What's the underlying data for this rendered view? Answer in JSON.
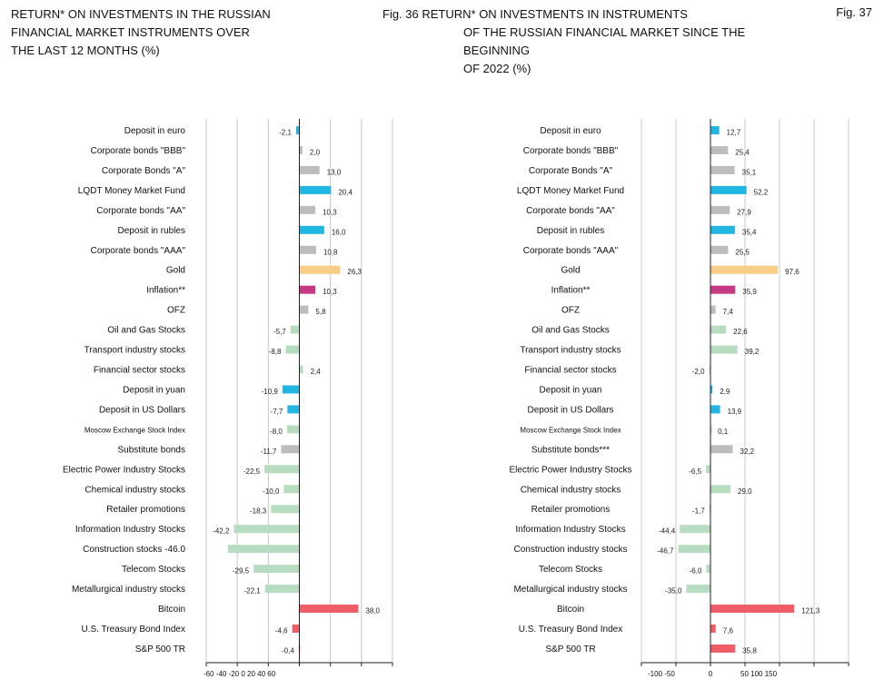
{
  "titles": {
    "left": [
      "RETURN* ON INVESTMENTS IN THE RUSSIAN",
      "FINANCIAL MARKET INSTRUMENTS OVER",
      "THE LAST 12 MONTHS (%)"
    ],
    "right": [
      "Fig. 36 RETURN* ON INVESTMENTS IN INSTRUMENTS",
      "OF THE RUSSIAN FINANCIAL MARKET SINCE THE",
      "BEGINNING",
      "OF 2022 (%)"
    ],
    "fig": "Fig. 37"
  },
  "colors": {
    "cyan": "#22b6e3",
    "gray": "#bdbdbd",
    "gold": "#f7cd88",
    "magenta": "#c53a83",
    "green": "#b8dcc0",
    "red": "#ef5d69",
    "axis": "#222222",
    "grid": "#c8c8c8"
  },
  "chart_data": [
    {
      "type": "bar",
      "orientation": "horizontal",
      "title": "RETURN* ON INVESTMENTS IN THE RUSSIAN FINANCIAL MARKET INSTRUMENTS OVER THE LAST 12 MONTHS (%)",
      "xlim": [
        -60,
        60
      ],
      "xtick_label_text": "-60 -40 -20 0 20 40 60",
      "grid": true,
      "categories": [
        "Deposit in euro",
        "Corporate bonds \"BBB\"",
        "Corporate Bonds \"A\"",
        "LQDT Money Market Fund",
        "Corporate bonds \"AA\"",
        "Deposit in rubles",
        "Corporate bonds \"AAA\"",
        "Gold",
        "Inflation**",
        "OFZ",
        "Oil and Gas Stocks",
        "Transport industry stocks",
        "Financial sector stocks",
        "Deposit in yuan",
        "Deposit in US Dollars",
        "Moscow Exchange Stock Index",
        "Substitute bonds",
        "Electric Power Industry Stocks",
        "Chemical industry stocks",
        "Retailer promotions",
        "Information Industry Stocks",
        "Construction stocks -46.0",
        "Telecom Stocks",
        "Metallurgical industry stocks",
        "Bitcoin",
        "U.S. Treasury Bond Index",
        "S&P 500 TR"
      ],
      "values": [
        -2.1,
        2.0,
        13.0,
        20.4,
        10.3,
        16.0,
        10.8,
        26.3,
        10.3,
        5.8,
        -5.7,
        -8.8,
        2.4,
        -10.9,
        -7.7,
        -8.0,
        -11.7,
        -22.5,
        -10.0,
        -18.3,
        -42.2,
        -46.0,
        -29.5,
        -22.1,
        38.0,
        -4.6,
        -0.4
      ],
      "labels": [
        "-2,1",
        "2,0",
        "13,0",
        "20,4",
        "10,3",
        "16,0",
        "10,8",
        "26,3",
        "10,3",
        "5,8",
        "-5,7",
        "-8,8",
        "2,4",
        "-10,9",
        "-7,7",
        "-8,0",
        "-11,7",
        "-22,5",
        "-10,0",
        "-18,3",
        "-42,2",
        "",
        "-29,5",
        "-22,1",
        "38,0",
        "-4,6",
        "-0,4"
      ],
      "colors": [
        "cyan",
        "gray",
        "gray",
        "cyan",
        "gray",
        "cyan",
        "gray",
        "gold",
        "magenta",
        "gray",
        "green",
        "green",
        "green",
        "cyan",
        "cyan",
        "green",
        "gray",
        "green",
        "green",
        "green",
        "green",
        "green",
        "green",
        "green",
        "red",
        "red",
        "red"
      ]
    },
    {
      "type": "bar",
      "orientation": "horizontal",
      "title": "Fig. 36 RETURN* ON INVESTMENTS IN INSTRUMENTS OF THE RUSSIAN FINANCIAL MARKET SINCE THE BEGINNING OF 2022 (%)",
      "xlim": [
        -100,
        200
      ],
      "xticks": [
        -100,
        -50,
        0,
        50,
        100,
        150
      ],
      "xtick_labels": [
        "-100 -50",
        "0",
        "50 100 150"
      ],
      "grid": true,
      "categories": [
        "Deposit in euro",
        "Corporate bonds \"BBB\"",
        "Corporate Bonds \"A\"",
        "LQDT Money Market Fund",
        "Corporate bonds \"AA\"",
        "Deposit in rubles",
        "Corporate bonds \"AAA\"",
        "Gold",
        "Inflation**",
        "OFZ",
        "Oil and Gas Stocks",
        "Transport industry stocks",
        "Financial sector stocks",
        "Deposit in yuan",
        "Deposit in US Dollars",
        "Moscow Exchange Stock Index",
        "Substitute bonds***",
        "Electric Power Industry Stocks",
        "Chemical industry stocks",
        "Retailer promotions",
        "Information Industry Stocks",
        "Construction industry stocks",
        "Telecom Stocks",
        "Metallurgical industry stocks",
        "Bitcoin",
        "U.S. Treasury Bond Index",
        "S&P 500 TR"
      ],
      "values": [
        12.7,
        25.4,
        35.1,
        52.2,
        27.9,
        35.4,
        25.5,
        97.6,
        35.9,
        7.4,
        22.6,
        39.2,
        -2.0,
        2.9,
        13.9,
        0.1,
        32.2,
        -6.5,
        29.0,
        -1.7,
        -44.4,
        -46.7,
        -6.0,
        -35.0,
        121.3,
        7.6,
        35.8
      ],
      "labels": [
        "12,7",
        "25,4",
        "35,1",
        "52,2",
        "27,9",
        "35,4",
        "25,5",
        "97,6",
        "35,9",
        "7,4",
        "22,6",
        "39,2",
        "-2,0",
        "2,9",
        "13,9",
        "0,1",
        "32,2",
        "-6,5",
        "29,0",
        "-1,7",
        "-44,4",
        "-46,7",
        "-6,0",
        "-35,0",
        "121,3",
        "7,6",
        "35,8"
      ],
      "colors": [
        "cyan",
        "gray",
        "gray",
        "cyan",
        "gray",
        "cyan",
        "gray",
        "gold",
        "magenta",
        "gray",
        "green",
        "green",
        "green",
        "cyan",
        "cyan",
        "green",
        "gray",
        "green",
        "green",
        "green",
        "green",
        "green",
        "green",
        "green",
        "red",
        "red",
        "red"
      ]
    }
  ]
}
